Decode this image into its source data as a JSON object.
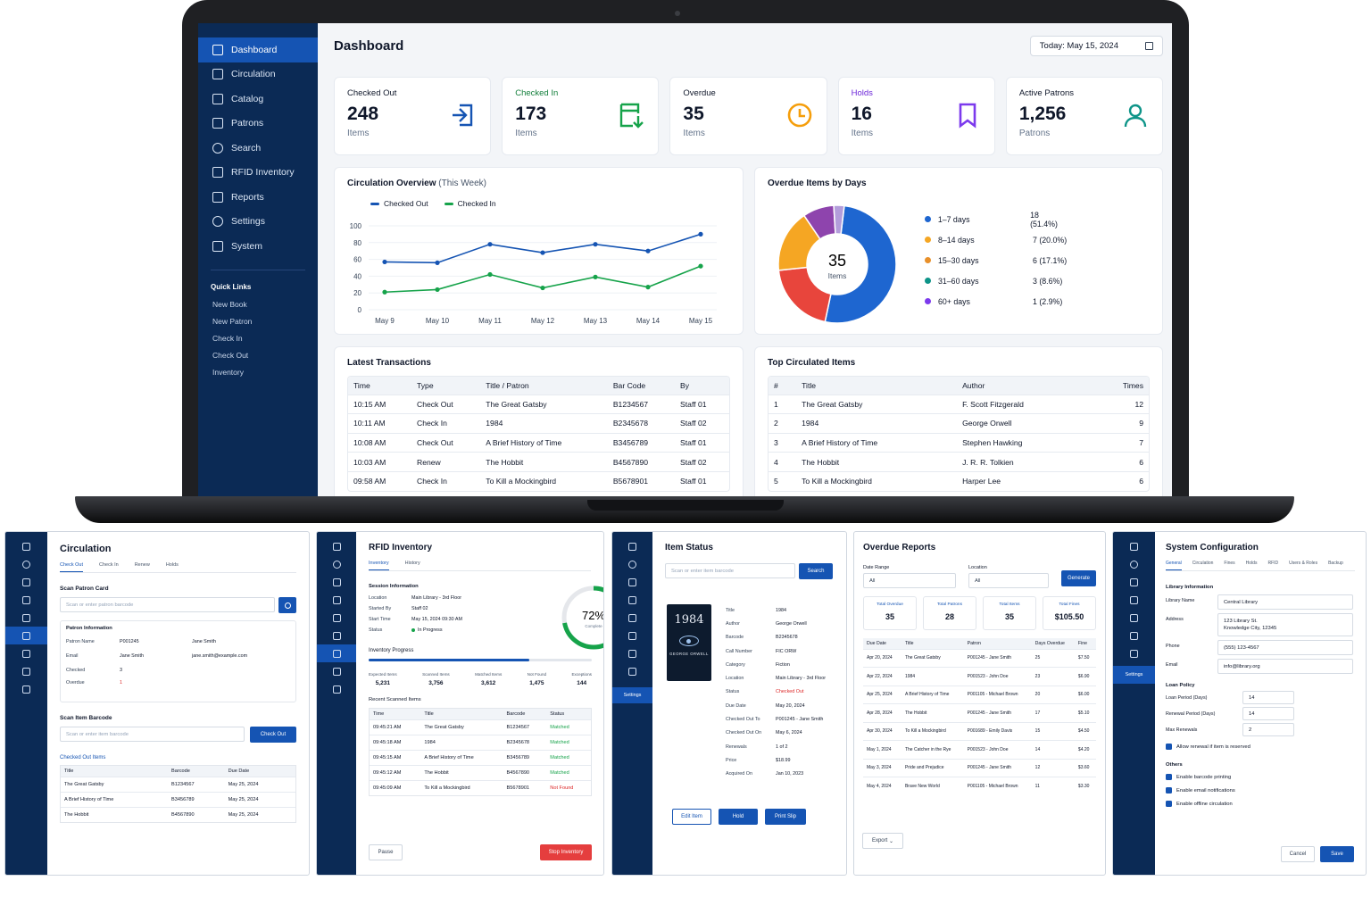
{
  "dashboard": {
    "title": "Dashboard",
    "date": "Today: May 15, 2024",
    "nav": [
      "Dashboard",
      "Circulation",
      "Catalog",
      "Patrons",
      "Search",
      "RFID Inventory",
      "Reports",
      "Settings",
      "System"
    ],
    "quick_links_title": "Quick Links",
    "quick_links": [
      "New Book",
      "New Patron",
      "Check In",
      "Check Out",
      "Inventory"
    ],
    "stats": [
      {
        "label": "Checked Out",
        "value": "248",
        "sub": "Items",
        "color": "#1554b3",
        "icon": "checkout-icon"
      },
      {
        "label": "Checked In",
        "value": "173",
        "sub": "Items",
        "color": "#16a34a",
        "icon": "checkin-icon"
      },
      {
        "label": "Overdue",
        "value": "35",
        "sub": "Items",
        "color": "#f59e0b",
        "icon": "clock-icon"
      },
      {
        "label": "Holds",
        "value": "16",
        "sub": "Items",
        "color": "#7c3aed",
        "icon": "bookmark-icon"
      },
      {
        "label": "Active Patrons",
        "value": "1,256",
        "sub": "Patrons",
        "color": "#0d9488",
        "icon": "user-icon"
      }
    ],
    "circ_title": "Circulation Overview",
    "circ_sub": "(This Week)",
    "overdue_title": "Overdue Items by Days",
    "donut_value": "35",
    "donut_sub": "Items",
    "latest_title": "Latest Transactions",
    "latest_headers": [
      "Time",
      "Type",
      "Title / Patron",
      "Bar Code",
      "By"
    ],
    "latest_rows": [
      [
        "10:15 AM",
        "Check Out",
        "The Great Gatsby",
        "B1234567",
        "Staff 01"
      ],
      [
        "10:11 AM",
        "Check In",
        "1984",
        "B2345678",
        "Staff 02"
      ],
      [
        "10:08 AM",
        "Check Out",
        "A Brief History of Time",
        "B3456789",
        "Staff 01"
      ],
      [
        "10:03 AM",
        "Renew",
        "The Hobbit",
        "B4567890",
        "Staff 02"
      ],
      [
        "09:58 AM",
        "Check In",
        "To Kill a Mockingbird",
        "B5678901",
        "Staff 01"
      ]
    ],
    "top_title": "Top Circulated Items",
    "top_headers": [
      "#",
      "Title",
      "Author",
      "Times"
    ],
    "top_rows": [
      [
        "1",
        "The Great Gatsby",
        "F. Scott Fitzgerald",
        "12"
      ],
      [
        "2",
        "1984",
        "George Orwell",
        "9"
      ],
      [
        "3",
        "A Brief History of Time",
        "Stephen Hawking",
        "7"
      ],
      [
        "4",
        "The Hobbit",
        "J. R. R. Tolkien",
        "6"
      ],
      [
        "5",
        "To Kill a Mockingbird",
        "Harper Lee",
        "6"
      ]
    ]
  },
  "chart_data": [
    {
      "type": "line",
      "title": "Circulation Overview (This Week)",
      "x": [
        "May 9",
        "May 10",
        "May 11",
        "May 12",
        "May 13",
        "May 14",
        "May 15"
      ],
      "ylim": [
        0,
        100
      ],
      "yticks": [
        0,
        20,
        40,
        60,
        80,
        100
      ],
      "legend": "top-left",
      "series": [
        {
          "name": "Checked Out",
          "color": "#1554b3",
          "values": [
            57,
            56,
            78,
            68,
            78,
            70,
            90
          ]
        },
        {
          "name": "Checked In",
          "color": "#16a34a",
          "values": [
            21,
            24,
            42,
            26,
            39,
            27,
            52
          ]
        }
      ]
    },
    {
      "type": "pie",
      "title": "Overdue Items by Days",
      "slices": [
        {
          "label": "1–7 days",
          "value": 18,
          "text": "18 (51.4%)",
          "color": "#1e66d0"
        },
        {
          "label": "8–14 days",
          "value": 7,
          "text": "7 (20.0%)",
          "color": "#e8453c"
        },
        {
          "label": "15–30 days",
          "value": 6,
          "text": "6 (17.1%)",
          "color": "#f5a623"
        },
        {
          "label": "31–60 days",
          "value": 3,
          "text": "3 (8.6%)",
          "color": "#8e44ad"
        },
        {
          "label": "60+ days",
          "value": 1,
          "text": "1 (2.9%)",
          "color": "#b39ddb"
        }
      ],
      "legend_colors": [
        "#1e66d0",
        "#f5a623",
        "#e8902a",
        "#0d9488",
        "#7c3aed"
      ]
    }
  ],
  "circ_panel": {
    "title": "Circulation",
    "tabs": [
      "Check Out",
      "Check In",
      "Renew",
      "Holds"
    ],
    "scan_patron": "Scan Patron Card",
    "patron_placeholder": "Scan or enter patron barcode",
    "patron_info": "Patron Information",
    "patron_fields": [
      [
        "Patron Name",
        "P001245",
        "Jane Smith"
      ],
      [
        "Email",
        "Jane Smith",
        "jane.smith@example.com"
      ],
      [
        "Checked",
        "3",
        ""
      ],
      [
        "Overdue",
        "1",
        ""
      ]
    ],
    "scan_item": "Scan Item Barcode",
    "item_placeholder": "Scan or enter item barcode",
    "checkout_btn": "Check Out",
    "checked_out_items": "Checked Out Items",
    "headers": [
      "Title",
      "Barcode",
      "Due Date"
    ],
    "rows": [
      [
        "The Great Gatsby",
        "B1234567",
        "May 25, 2024"
      ],
      [
        "A Brief History of Time",
        "B3456789",
        "May 25, 2024"
      ],
      [
        "The Hobbit",
        "B4567890",
        "May 25, 2024"
      ]
    ]
  },
  "rfid_panel": {
    "title": "RFID Inventory",
    "tabs": [
      "Inventory",
      "History"
    ],
    "session": "Session Information",
    "fields": [
      [
        "Location",
        "Main Library - 3rd Floor"
      ],
      [
        "Started By",
        "Staff 02"
      ],
      [
        "Start Time",
        "May 15, 2024 09:30 AM"
      ],
      [
        "Status",
        "In Progress"
      ]
    ],
    "percent": "72%",
    "percent_value": 72,
    "complete": "Complete",
    "progress_title": "Inventory Progress",
    "progress_value": 72,
    "stats": [
      [
        "Expected Items",
        "5,231"
      ],
      [
        "Scanned Items",
        "3,756"
      ],
      [
        "Matched Items",
        "3,612"
      ],
      [
        "Not Found",
        "1,475"
      ],
      [
        "Exceptions",
        "144"
      ]
    ],
    "recent": "Recent Scanned Items",
    "headers": [
      "Time",
      "Title",
      "Barcode",
      "Status"
    ],
    "rows": [
      [
        "09:45:21 AM",
        "The Great Gatsby",
        "B1234567",
        "Matched"
      ],
      [
        "09:45:18 AM",
        "1984",
        "B2345678",
        "Matched"
      ],
      [
        "09:45:15 AM",
        "A Brief History of Time",
        "B3456789",
        "Matched"
      ],
      [
        "09:45:12 AM",
        "The Hobbit",
        "B4567890",
        "Matched"
      ],
      [
        "09:45:09 AM",
        "To Kill a Mockingbird",
        "B5678901",
        "Not Found"
      ]
    ],
    "pause": "Pause",
    "stop": "Stop Inventory"
  },
  "item_panel": {
    "title": "Item Status",
    "placeholder": "Scan or enter item barcode",
    "search": "Search",
    "settings_label": "Settings",
    "cover_title": "1984",
    "cover_author": "GEORGE ORWELL",
    "fields": [
      [
        "Title",
        "1984"
      ],
      [
        "Author",
        "George Orwell"
      ],
      [
        "Barcode",
        "B2345678"
      ],
      [
        "Call Number",
        "FIC ORW"
      ],
      [
        "Category",
        "Fiction"
      ],
      [
        "Location",
        "Main Library - 3rd Floor"
      ],
      [
        "Status",
        "Checked Out"
      ],
      [
        "Due Date",
        "May 20, 2024"
      ],
      [
        "Checked Out To",
        "P001245 - Jane Smith"
      ],
      [
        "Checked Out On",
        "May 6, 2024"
      ],
      [
        "Renewals",
        "1 of 2"
      ],
      [
        "Price",
        "$18.99"
      ],
      [
        "Acquired On",
        "Jan 10, 2023"
      ]
    ],
    "buttons": [
      "Edit Item",
      "Hold",
      "Print Slip"
    ]
  },
  "overdue_panel": {
    "title": "Overdue Reports",
    "date_range": "Date Range",
    "location": "Location",
    "all": "All",
    "generate": "Generate",
    "cards": [
      [
        "Total Overdue",
        "35"
      ],
      [
        "Total Patrons",
        "28"
      ],
      [
        "Total Items",
        "35"
      ],
      [
        "Total Fines",
        "$105.50"
      ]
    ],
    "headers": [
      "Due Date",
      "Title",
      "Patron",
      "Days Overdue",
      "Fine"
    ],
    "rows": [
      [
        "Apr 20, 2024",
        "The Great Gatsby",
        "P001245 - Jane Smith",
        "25",
        "$7.50"
      ],
      [
        "Apr 22, 2024",
        "1984",
        "P001523 - John Doe",
        "23",
        "$6.90"
      ],
      [
        "Apr 25, 2024",
        "A Brief History of Time",
        "P001105 - Michael Brown",
        "20",
        "$6.00"
      ],
      [
        "Apr 28, 2024",
        "The Hobbit",
        "P001245 - Jane Smith",
        "17",
        "$5.10"
      ],
      [
        "Apr 30, 2024",
        "To Kill a Mockingbird",
        "P001689 - Emily Davis",
        "15",
        "$4.50"
      ],
      [
        "May 1, 2024",
        "The Catcher in the Rye",
        "P001523 - John Doe",
        "14",
        "$4.20"
      ],
      [
        "May 3, 2024",
        "Pride and Prejudice",
        "P001245 - Jane Smith",
        "12",
        "$3.60"
      ],
      [
        "May 4, 2024",
        "Brave New World",
        "P001105 - Michael Brown",
        "11",
        "$3.30"
      ]
    ],
    "export": "Export"
  },
  "sys_panel": {
    "title": "System Configuration",
    "tabs": [
      "General",
      "Circulation",
      "Fines",
      "Holds",
      "RFID",
      "Users & Roles",
      "Backup"
    ],
    "settings_label": "Settings",
    "lib_info": "Library Information",
    "fields": [
      [
        "Library Name",
        "Central Library"
      ],
      [
        "Address",
        "123 Library St.\nKnowledge City, 12345"
      ],
      [
        "Phone",
        "(555) 123-4567"
      ],
      [
        "Email",
        "info@library.org"
      ]
    ],
    "loan_policy": "Loan Policy",
    "loan_fields": [
      [
        "Loan Period (Days)",
        "14"
      ],
      [
        "Renewal Period (Days)",
        "14"
      ],
      [
        "Max Renewals",
        "2"
      ]
    ],
    "allow_renewal": "Allow renewal if item is reserved",
    "others": "Others",
    "others_items": [
      "Enable barcode printing",
      "Enable email notifications",
      "Enable offline circulation"
    ],
    "cancel": "Cancel",
    "save": "Save"
  }
}
